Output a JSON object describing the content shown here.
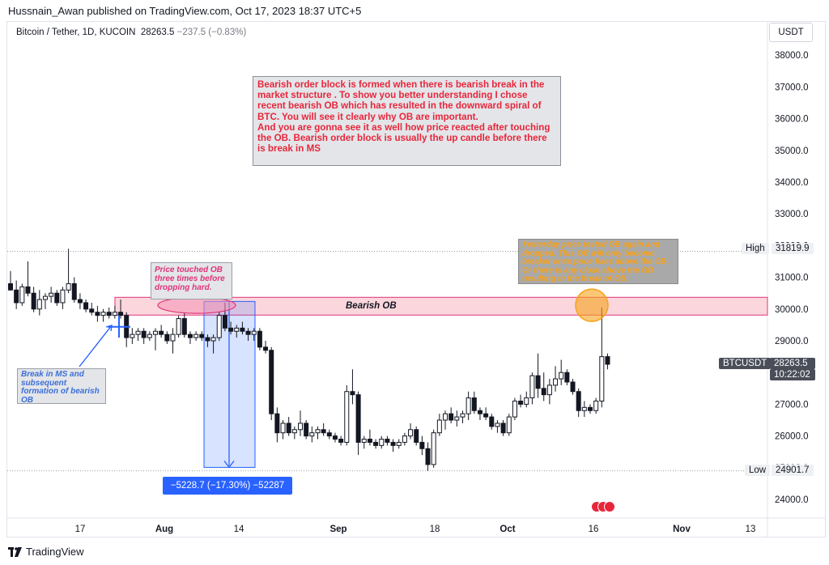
{
  "publisher": "Hussnain_Awan published on TradingView.com, Oct 17, 2023 18:37 UTC+5",
  "symbol": {
    "name": "Bitcoin / Tether, 1D, KUCOIN",
    "price": "28263.5",
    "change": "−237.5 (−0.83%)"
  },
  "currency": "USDT",
  "brand": "TradingView",
  "colors": {
    "bull": "#ffffff",
    "bear": "#131722",
    "ob_fill": "#f9c6cf",
    "ob_border": "#e0337a",
    "measure": "#2962ff",
    "orange": "#f7a21a",
    "red_note": "#e8263a"
  },
  "annotations": {
    "main_note": "Bearish order block is formed when there is bearish  break in the market structure . To show you better understanding I chose recent bearish OB which has resulted in the downward spiral of BTC. You will see it clearly why OB are important.\nAnd you are gonna see it as well how price reacted after touching the OB. Bearish order block is usually the up candle before there is break in MS",
    "pink_note": "Price touched OB three times before dropping hard.",
    "blue_note": "Break in MS and subsequent formation of bearish OB",
    "orange_note": "Yesterday price tested OB again and dropped. This OB will only become breaker once price fixes above the OB . Or there is any close above the OB resulting in the break of OB.",
    "ob_label": "Bearish OB",
    "measure_label": "−5228.7 (−17.30%) −52287"
  },
  "price_tags": {
    "high_label": "High",
    "high_value": "31819.9",
    "low_label": "Low",
    "low_value": "24901.7",
    "last_label": "BTCUSDT",
    "last_value": "28263.5",
    "countdown": "10:22:02"
  },
  "chart_data": {
    "type": "candlestick",
    "y_ticks": [
      "24000.0",
      "25000.0",
      "26000.0",
      "27000.0",
      "28000.0",
      "29000.0",
      "30000.0",
      "31000.0",
      "32000.0",
      "33000.0",
      "34000.0",
      "35000.0",
      "36000.0",
      "37000.0",
      "38000.0"
    ],
    "x_ticks": [
      "17",
      "Aug",
      "14",
      "Sep",
      "18",
      "Oct",
      "16",
      "Nov",
      "13"
    ],
    "y_range": [
      23500,
      38400
    ],
    "order_block": [
      29810,
      30370
    ],
    "measure": {
      "from": 30240,
      "to": 25010
    },
    "series": [
      {
        "ohlc": [
          [
            30800,
            31200,
            30700,
            30600
          ],
          [
            30600,
            30900,
            30000,
            30200
          ],
          [
            30200,
            30800,
            30100,
            30700
          ],
          [
            30700,
            31500,
            30400,
            30500
          ],
          [
            30500,
            30700,
            29900,
            30000
          ],
          [
            30000,
            30600,
            29800,
            30300
          ],
          [
            30300,
            30500,
            30000,
            30400
          ],
          [
            30400,
            30700,
            30200,
            30500
          ],
          [
            30500,
            30600,
            30100,
            30200
          ],
          [
            30200,
            30700,
            30000,
            30600
          ],
          [
            30600,
            31900,
            30500,
            30800
          ],
          [
            30800,
            31000,
            30200,
            30300
          ],
          [
            30300,
            30500,
            30000,
            30200
          ],
          [
            30200,
            30300,
            29900,
            30000
          ],
          [
            30000,
            30200,
            29800,
            29900
          ],
          [
            29900,
            30100,
            29600,
            29800
          ],
          [
            29800,
            30000,
            29600,
            29900
          ],
          [
            29900,
            30050,
            29700,
            29800
          ],
          [
            29800,
            30100,
            29700,
            29900
          ],
          [
            29900,
            30300,
            29700,
            29800
          ],
          [
            29800,
            29900,
            28800,
            29100
          ],
          [
            29100,
            29400,
            28900,
            29200
          ],
          [
            29200,
            29400,
            29000,
            29300
          ],
          [
            29300,
            29400,
            28900,
            29100
          ],
          [
            29100,
            29300,
            29000,
            29200
          ],
          [
            29200,
            29400,
            28700,
            29300
          ],
          [
            29300,
            29500,
            29100,
            29200
          ],
          [
            29200,
            29300,
            28900,
            29000
          ],
          [
            29000,
            29400,
            28600,
            29200
          ],
          [
            29200,
            29800,
            29100,
            29700
          ],
          [
            29700,
            29900,
            29100,
            29200
          ],
          [
            29200,
            29300,
            28900,
            29100
          ],
          [
            29100,
            29300,
            29000,
            29200
          ],
          [
            29200,
            29300,
            29000,
            29100
          ],
          [
            29100,
            29200,
            28800,
            29000
          ],
          [
            29000,
            29200,
            28600,
            29100
          ],
          [
            29100,
            29900,
            29000,
            29800
          ],
          [
            29800,
            30200,
            29300,
            29400
          ],
          [
            29400,
            29600,
            29200,
            29300
          ],
          [
            29300,
            29500,
            29100,
            29400
          ],
          [
            29400,
            29600,
            29200,
            29300
          ],
          [
            29300,
            29400,
            29000,
            29200
          ],
          [
            29200,
            29400,
            29000,
            29300
          ],
          [
            29300,
            29400,
            28700,
            28800
          ],
          [
            28800,
            29000,
            28600,
            28700
          ],
          [
            28700,
            28800,
            26500,
            26700
          ],
          [
            26700,
            26900,
            25800,
            26100
          ],
          [
            26100,
            26500,
            25900,
            26400
          ],
          [
            26400,
            26600,
            26000,
            26100
          ],
          [
            26100,
            26300,
            25900,
            26200
          ],
          [
            26200,
            26800,
            26000,
            26400
          ],
          [
            26400,
            26500,
            25900,
            26000
          ],
          [
            26000,
            26300,
            25800,
            26100
          ],
          [
            26100,
            26300,
            25900,
            26200
          ],
          [
            26200,
            26400,
            26000,
            26100
          ],
          [
            26100,
            26200,
            25900,
            26000
          ],
          [
            26000,
            26100,
            25800,
            25900
          ],
          [
            25900,
            26000,
            25700,
            25800
          ],
          [
            25800,
            27600,
            25700,
            27400
          ],
          [
            27400,
            28100,
            27000,
            27300
          ],
          [
            27300,
            27400,
            25400,
            25800
          ],
          [
            25800,
            26000,
            25600,
            25900
          ],
          [
            25900,
            26200,
            25700,
            25800
          ],
          [
            25800,
            25900,
            25600,
            25700
          ],
          [
            25700,
            26000,
            25600,
            25900
          ],
          [
            25900,
            26000,
            25700,
            25800
          ],
          [
            25800,
            25900,
            25500,
            25700
          ],
          [
            25700,
            25900,
            25600,
            25800
          ],
          [
            25800,
            26100,
            25700,
            26000
          ],
          [
            26000,
            26400,
            25900,
            26200
          ],
          [
            26200,
            26300,
            25700,
            25800
          ],
          [
            25800,
            26000,
            25400,
            25600
          ],
          [
            25600,
            25800,
            24900,
            25100
          ],
          [
            25100,
            26200,
            25000,
            26100
          ],
          [
            26100,
            26700,
            26000,
            26500
          ],
          [
            26500,
            26800,
            26200,
            26700
          ],
          [
            26700,
            26900,
            26400,
            26500
          ],
          [
            26500,
            26800,
            26300,
            26600
          ],
          [
            26600,
            26800,
            26400,
            26700
          ],
          [
            26700,
            27400,
            26500,
            27200
          ],
          [
            27200,
            27400,
            26700,
            26800
          ],
          [
            26800,
            26900,
            26500,
            26700
          ],
          [
            26700,
            26900,
            26500,
            26600
          ],
          [
            26600,
            26700,
            26200,
            26300
          ],
          [
            26300,
            26500,
            26100,
            26400
          ],
          [
            26400,
            26500,
            26000,
            26100
          ],
          [
            26100,
            26700,
            26000,
            26600
          ],
          [
            26600,
            27200,
            26500,
            27100
          ],
          [
            27100,
            27300,
            26900,
            27000
          ],
          [
            27000,
            27400,
            26900,
            27200
          ],
          [
            27200,
            28000,
            27000,
            27900
          ],
          [
            27900,
            28600,
            27200,
            27500
          ],
          [
            27500,
            28000,
            27100,
            27300
          ],
          [
            27300,
            27800,
            27000,
            27600
          ],
          [
            27600,
            28200,
            27400,
            27800
          ],
          [
            27800,
            28400,
            27600,
            28000
          ],
          [
            28000,
            28100,
            27600,
            27700
          ],
          [
            27700,
            27800,
            27300,
            27400
          ],
          [
            27400,
            27500,
            26600,
            26800
          ],
          [
            26800,
            27100,
            26600,
            26900
          ],
          [
            26900,
            27000,
            26700,
            26800
          ],
          [
            26800,
            27200,
            26700,
            27100
          ],
          [
            27100,
            30050,
            26900,
            28500
          ],
          [
            28500,
            28600,
            28100,
            28260
          ]
        ]
      }
    ]
  }
}
